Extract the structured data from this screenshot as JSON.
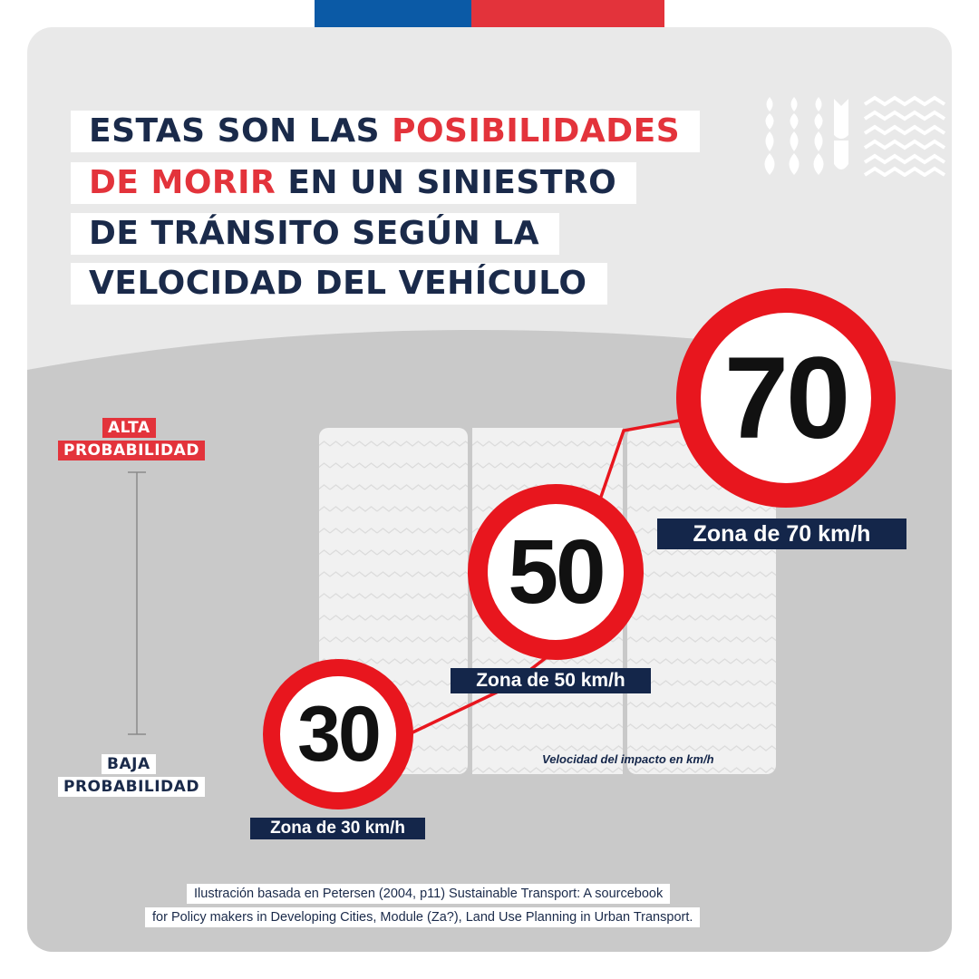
{
  "headline": {
    "line1_a": "ESTAS SON LAS ",
    "line1_b": "POSIBILIDADES",
    "line2_a": "DE MORIR",
    "line2_b": " EN UN SINIESTRO",
    "line3": "DE TRÁNSITO SEGÚN LA",
    "line4": "VELOCIDAD DEL VEHÍCULO"
  },
  "probability": {
    "high_1": "ALTA",
    "high_2": "PROBABILIDAD",
    "low_1": "BAJA",
    "low_2": "PROBABILIDAD"
  },
  "signs": [
    {
      "value": "30",
      "zone": "Zona de 30 km/h"
    },
    {
      "value": "50",
      "zone": "Zona de 50 km/h"
    },
    {
      "value": "70",
      "zone": "Zona de 70 km/h"
    }
  ],
  "axis_note": "Velocidad del impacto en km/h",
  "credit": {
    "line1": "Ilustración basada en Petersen (2004, p11) Sustainable Transport: A sourcebook",
    "line2": "for Policy makers in Developing Cities, Module (Za?), Land Use Planning in Urban Transport."
  },
  "colors": {
    "navy": "#14264a",
    "red": "#e3333b",
    "sign_red": "#e8161e",
    "flag_blue": "#0b5aa6"
  }
}
